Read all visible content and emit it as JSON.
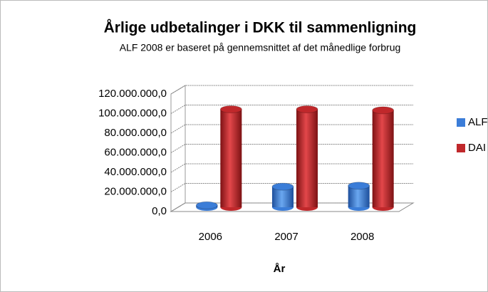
{
  "chart_data": {
    "type": "bar3d",
    "title": "Årlige udbetalinger i DKK til sammenligning",
    "subtitle": "ALF 2008 er baseret på gennemsnittet af det månedlige forbrug",
    "x_label": "År",
    "categories": [
      "2006",
      "2007",
      "2008"
    ],
    "series": [
      {
        "name": "ALF",
        "color": "#3b7dd8",
        "values": [
          2000000,
          21000000,
          22000000
        ]
      },
      {
        "name": "DAI",
        "color": "#c0282b",
        "values": [
          100000000,
          100000000,
          99000000
        ]
      }
    ],
    "ylim": [
      0,
      120000000
    ],
    "yticks": [
      {
        "value": 0,
        "label": "0,0"
      },
      {
        "value": 20000000,
        "label": "20.000.000,0"
      },
      {
        "value": 40000000,
        "label": "40.000.000,0"
      },
      {
        "value": 60000000,
        "label": "60.000.000,0"
      },
      {
        "value": 80000000,
        "label": "80.000.000,0"
      },
      {
        "value": 100000000,
        "label": "100.000.000,0"
      },
      {
        "value": 120000000,
        "label": "120.000.000,0"
      }
    ],
    "grid": true,
    "legend": "right"
  }
}
